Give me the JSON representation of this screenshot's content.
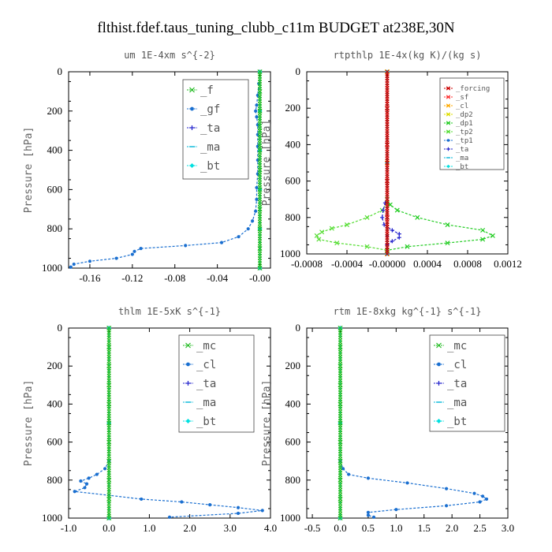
{
  "figure": {
    "title": "flthist.fdef.taus_tuning_clubb_c11m  BUDGET at238E,30N"
  },
  "chart_data": [
    {
      "id": "um",
      "type": "line",
      "title": "um   1E-4xm  s^{-2}",
      "ylabel": "Pressure [hPa]",
      "xlim": [
        -0.18,
        0.01
      ],
      "ylim": [
        1000,
        0
      ],
      "xticks": [
        -0.16,
        -0.12,
        -0.08,
        -0.04,
        -0.0
      ],
      "xtick_labels": [
        "-0.16",
        "-0.12",
        "-0.08",
        "-0.04",
        "-0.00"
      ],
      "yticks": [
        0,
        200,
        400,
        600,
        800,
        1000
      ],
      "legend": {
        "position": "top-right",
        "font": 14,
        "entries": [
          "_f",
          "_gf",
          "_ta",
          "_ma",
          "_bt"
        ]
      },
      "series": [
        {
          "name": "_f",
          "color": "#22bb22",
          "marker": "x",
          "points": [
            [
              0.0,
              0
            ],
            [
              0.0,
              100
            ],
            [
              0.0,
              200
            ],
            [
              0.0,
              300
            ],
            [
              0.0,
              400
            ],
            [
              0.0,
              500
            ],
            [
              0.0,
              600
            ],
            [
              0.0,
              700
            ],
            [
              0.0,
              800
            ],
            [
              0.0,
              900
            ],
            [
              0.0,
              1000
            ]
          ]
        },
        {
          "name": "_gf",
          "color": "#1a6fd0",
          "marker": "dot",
          "points": [
            [
              -0.001,
              60
            ],
            [
              -0.002,
              120
            ],
            [
              -0.003,
              170
            ],
            [
              -0.004,
              200
            ],
            [
              -0.003,
              230
            ],
            [
              -0.002,
              270
            ],
            [
              -0.002,
              320
            ],
            [
              -0.002,
              380
            ],
            [
              -0.002,
              450
            ],
            [
              -0.002,
              520
            ],
            [
              -0.003,
              590
            ],
            [
              -0.003,
              650
            ],
            [
              -0.004,
              710
            ],
            [
              -0.007,
              760
            ],
            [
              -0.011,
              800
            ],
            [
              -0.02,
              840
            ],
            [
              -0.036,
              870
            ],
            [
              -0.07,
              885
            ],
            [
              -0.112,
              900
            ],
            [
              -0.118,
              915
            ],
            [
              -0.12,
              930
            ],
            [
              -0.135,
              950
            ],
            [
              -0.16,
              965
            ],
            [
              -0.175,
              980
            ],
            [
              -0.178,
              995
            ]
          ]
        },
        {
          "name": "_ta",
          "color": "#2222cc",
          "marker": "plus",
          "points": [
            [
              0.0,
              0
            ],
            [
              0.0,
              200
            ],
            [
              0.0,
              400
            ],
            [
              0.0,
              600
            ],
            [
              0.0,
              800
            ],
            [
              0.0,
              1000
            ]
          ]
        },
        {
          "name": "_ma",
          "color": "#00b7d8",
          "marker": "dash",
          "points": [
            [
              0.0,
              0
            ],
            [
              0.0,
              200
            ],
            [
              0.0,
              400
            ],
            [
              0.0,
              600
            ],
            [
              0.0,
              800
            ],
            [
              0.0,
              1000
            ]
          ]
        },
        {
          "name": "_bt",
          "color": "#00e0e0",
          "marker": "diamond",
          "points": [
            [
              0.0,
              0
            ],
            [
              0.0,
              200
            ],
            [
              0.0,
              400
            ],
            [
              0.0,
              600
            ],
            [
              0.0,
              800
            ],
            [
              0.0,
              1000
            ]
          ]
        }
      ]
    },
    {
      "id": "rtpthlp",
      "type": "line",
      "title": "rtpthlp  1E-4x(kg K)/(kg s)",
      "ylabel": "Pressure [hPa]",
      "xlim": [
        -0.0008,
        0.0012
      ],
      "ylim": [
        1000,
        0
      ],
      "xticks": [
        -0.0008,
        -0.0004,
        0.0,
        0.0004,
        0.0008,
        0.0012
      ],
      "xtick_labels": [
        "-0.0008",
        "-0.0004",
        "-0.00000",
        "0.0004",
        "0.0008",
        "0.0012"
      ],
      "yticks": [
        0,
        200,
        400,
        600,
        800,
        1000
      ],
      "legend": {
        "position": "top-right",
        "font": 9,
        "entries": [
          "_forcing",
          "_sf",
          "_cl",
          "_dp2",
          "_dp1",
          "_tp2",
          "_tp1",
          "_ta",
          "_ma",
          "_bt"
        ]
      },
      "series": [
        {
          "name": "_forcing",
          "color": "#cc0000",
          "marker": "x",
          "points": [
            [
              0.0,
              0
            ],
            [
              0.0,
              200
            ],
            [
              0.0,
              400
            ],
            [
              0.0,
              600
            ],
            [
              0.0,
              800
            ],
            [
              0.0,
              1000
            ]
          ]
        },
        {
          "name": "_sf",
          "color": "#ff3030",
          "marker": "x",
          "points": [
            [
              0.0,
              0
            ],
            [
              0.0,
              500
            ],
            [
              0.0,
              1000
            ]
          ]
        },
        {
          "name": "_cl",
          "color": "#ffaa00",
          "marker": "x",
          "points": [
            [
              0.0,
              0
            ],
            [
              0.0,
              500
            ],
            [
              0.0,
              1000
            ]
          ]
        },
        {
          "name": "_dp2",
          "color": "#dddd00",
          "marker": "x",
          "points": [
            [
              0.0,
              0
            ],
            [
              0.0,
              500
            ],
            [
              0.0,
              1000
            ]
          ]
        },
        {
          "name": "_dp1",
          "color": "#22cc22",
          "marker": "x",
          "points": [
            [
              0.0,
              700
            ],
            [
              3e-05,
              730
            ],
            [
              0.0001,
              760
            ],
            [
              0.0003,
              800
            ],
            [
              0.0006,
              840
            ],
            [
              0.00095,
              870
            ],
            [
              0.00105,
              900
            ],
            [
              0.00095,
              920
            ],
            [
              0.0006,
              940
            ],
            [
              0.0002,
              960
            ],
            [
              0.0,
              980
            ]
          ]
        },
        {
          "name": "_tp2",
          "color": "#55dd33",
          "marker": "x",
          "points": [
            [
              0.0,
              720
            ],
            [
              -5e-05,
              760
            ],
            [
              -0.0002,
              800
            ],
            [
              -0.0004,
              840
            ],
            [
              -0.00055,
              860
            ],
            [
              -0.00065,
              880
            ],
            [
              -0.0007,
              900
            ],
            [
              -0.00068,
              920
            ],
            [
              -0.0005,
              940
            ],
            [
              -0.0002,
              960
            ],
            [
              0.0,
              980
            ]
          ]
        },
        {
          "name": "_tp1",
          "color": "#1a6fd0",
          "marker": "dot",
          "points": [
            [
              0.0,
              900
            ],
            [
              0.0,
              1000
            ]
          ]
        },
        {
          "name": "_ta",
          "color": "#2222cc",
          "marker": "plus",
          "points": [
            [
              -2e-05,
              720
            ],
            [
              -4e-05,
              760
            ],
            [
              -5e-05,
              800
            ],
            [
              -3e-05,
              840
            ],
            [
              5e-05,
              870
            ],
            [
              0.00012,
              890
            ],
            [
              0.00012,
              910
            ],
            [
              5e-05,
              930
            ],
            [
              0.0,
              950
            ]
          ]
        },
        {
          "name": "_ma",
          "color": "#00b7d8",
          "marker": "dash",
          "points": [
            [
              0.0,
              0
            ],
            [
              0.0,
              500
            ],
            [
              0.0,
              1000
            ]
          ]
        },
        {
          "name": "_bt",
          "color": "#00e0e0",
          "marker": "diamond",
          "points": [
            [
              0.0,
              0
            ],
            [
              0.0,
              500
            ],
            [
              0.0,
              1000
            ]
          ]
        }
      ]
    },
    {
      "id": "thlm",
      "type": "line",
      "title": "thlm   1E-5xK  s^{-1}",
      "ylabel": "Pressure [hPa]",
      "xlim": [
        -1.0,
        4.0
      ],
      "ylim": [
        1000,
        0
      ],
      "xticks": [
        -1.0,
        0.0,
        1.0,
        2.0,
        3.0,
        4.0
      ],
      "xtick_labels": [
        "-1.0",
        "0.0",
        "1.0",
        "2.0",
        "3.0",
        "4.0"
      ],
      "yticks": [
        0,
        200,
        400,
        600,
        800,
        1000
      ],
      "legend": {
        "position": "top-right",
        "font": 14,
        "entries": [
          "_mc",
          "_cl",
          "_ta",
          "_ma",
          "_bt"
        ]
      },
      "series": [
        {
          "name": "_mc",
          "color": "#22bb22",
          "marker": "x",
          "points": [
            [
              0.0,
              0
            ],
            [
              0.0,
              100
            ],
            [
              0.0,
              200
            ],
            [
              0.0,
              300
            ],
            [
              0.0,
              400
            ],
            [
              0.0,
              500
            ],
            [
              0.0,
              600
            ],
            [
              0.0,
              700
            ],
            [
              0.0,
              800
            ],
            [
              0.0,
              900
            ],
            [
              0.0,
              1000
            ]
          ]
        },
        {
          "name": "_cl",
          "color": "#1a6fd0",
          "marker": "dot",
          "points": [
            [
              0.0,
              700
            ],
            [
              -0.1,
              740
            ],
            [
              -0.3,
              770
            ],
            [
              -0.5,
              790
            ],
            [
              -0.7,
              805
            ],
            [
              -0.55,
              820
            ],
            [
              -0.6,
              840
            ],
            [
              -0.85,
              860
            ],
            [
              0.0,
              880
            ],
            [
              0.8,
              900
            ],
            [
              1.8,
              915
            ],
            [
              2.5,
              930
            ],
            [
              3.2,
              945
            ],
            [
              3.8,
              960
            ],
            [
              3.2,
              975
            ],
            [
              1.5,
              995
            ]
          ]
        },
        {
          "name": "_ta",
          "color": "#2222cc",
          "marker": "plus",
          "points": [
            [
              0.0,
              0
            ],
            [
              0.0,
              500
            ],
            [
              0.0,
              1000
            ]
          ]
        },
        {
          "name": "_ma",
          "color": "#00b7d8",
          "marker": "dash",
          "points": [
            [
              0.0,
              0
            ],
            [
              0.0,
              500
            ],
            [
              0.0,
              1000
            ]
          ]
        },
        {
          "name": "_bt",
          "color": "#00e0e0",
          "marker": "diamond",
          "points": [
            [
              0.0,
              0
            ],
            [
              0.0,
              500
            ],
            [
              0.0,
              1000
            ]
          ]
        }
      ]
    },
    {
      "id": "rtm",
      "type": "line",
      "title": "rtm   1E-8xkg kg^{-1} s^{-1}",
      "ylabel": "Pressure [hPa]",
      "xlim": [
        -0.6,
        3.0
      ],
      "ylim": [
        1000,
        0
      ],
      "xticks": [
        -0.5,
        0.0,
        0.5,
        1.0,
        1.5,
        2.0,
        2.5,
        3.0
      ],
      "xtick_labels": [
        "-0.5",
        "0.0",
        "0.5",
        "1.0",
        "1.5",
        "2.0",
        "2.5",
        "3.0"
      ],
      "yticks": [
        0,
        200,
        400,
        600,
        800,
        1000
      ],
      "legend": {
        "position": "top-right",
        "font": 14,
        "entries": [
          "_mc",
          "_cl",
          "_ta",
          "_ma",
          "_bt"
        ]
      },
      "series": [
        {
          "name": "_mc",
          "color": "#22bb22",
          "marker": "x",
          "points": [
            [
              0.0,
              0
            ],
            [
              0.0,
              100
            ],
            [
              0.0,
              200
            ],
            [
              0.0,
              300
            ],
            [
              0.0,
              400
            ],
            [
              0.0,
              500
            ],
            [
              0.0,
              600
            ],
            [
              0.0,
              700
            ],
            [
              0.0,
              800
            ],
            [
              0.0,
              900
            ],
            [
              0.0,
              1000
            ]
          ]
        },
        {
          "name": "_cl",
          "color": "#1a6fd0",
          "marker": "dot",
          "points": [
            [
              0.0,
              700
            ],
            [
              0.05,
              740
            ],
            [
              0.15,
              770
            ],
            [
              0.5,
              790
            ],
            [
              1.2,
              815
            ],
            [
              1.9,
              845
            ],
            [
              2.4,
              870
            ],
            [
              2.55,
              885
            ],
            [
              2.62,
              900
            ],
            [
              2.5,
              915
            ],
            [
              1.9,
              935
            ],
            [
              1.0,
              955
            ],
            [
              0.5,
              970
            ],
            [
              0.5,
              985
            ],
            [
              0.6,
              995
            ]
          ]
        },
        {
          "name": "_ta",
          "color": "#2222cc",
          "marker": "plus",
          "points": [
            [
              0.0,
              0
            ],
            [
              0.0,
              500
            ],
            [
              0.0,
              1000
            ]
          ]
        },
        {
          "name": "_ma",
          "color": "#00b7d8",
          "marker": "dash",
          "points": [
            [
              0.0,
              0
            ],
            [
              0.0,
              500
            ],
            [
              0.0,
              1000
            ]
          ]
        },
        {
          "name": "_bt",
          "color": "#00e0e0",
          "marker": "diamond",
          "points": [
            [
              0.0,
              0
            ],
            [
              0.0,
              500
            ],
            [
              0.0,
              1000
            ]
          ]
        }
      ]
    }
  ]
}
